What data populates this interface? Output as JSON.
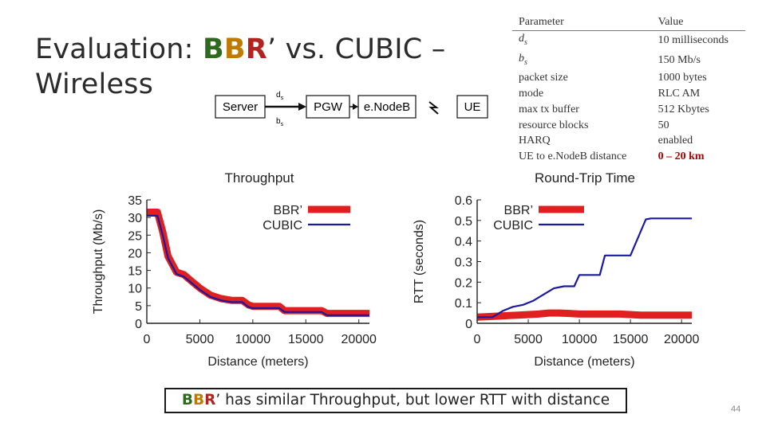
{
  "slide": {
    "title_line1_prefix": "Evaluation: ",
    "title_bbr_b1": "B",
    "title_bbr_b2": "B",
    "title_bbr_r": "R",
    "title_line1_suffix": "’ vs. CUBIC –",
    "title_line2": "Wireless",
    "page_number": "44"
  },
  "topology": {
    "nodes": [
      "Server",
      "PGW",
      "e.NodeB",
      "UE"
    ],
    "link_label_top": "d",
    "link_label_top_sub": "s",
    "link_label_bottom": "b",
    "link_label_bottom_sub": "s",
    "wireless_symbol": "≁"
  },
  "parameters": {
    "header_param": "Parameter",
    "header_value": "Value",
    "rows": [
      {
        "name": "d",
        "sub": "s",
        "italic": true,
        "value": "10 milliseconds"
      },
      {
        "name": "b",
        "sub": "s",
        "italic": true,
        "value": "150 Mb/s"
      },
      {
        "name": "packet size",
        "sub": "",
        "italic": false,
        "value": "1000 bytes"
      },
      {
        "name": "mode",
        "sub": "",
        "italic": false,
        "value": "RLC AM"
      },
      {
        "name": "max tx buffer",
        "sub": "",
        "italic": false,
        "value": "512 Kbytes"
      },
      {
        "name": "resource blocks",
        "sub": "",
        "italic": false,
        "value": "50"
      },
      {
        "name": "HARQ",
        "sub": "",
        "italic": false,
        "value": "enabled"
      },
      {
        "name": "UE to e.NodeB distance",
        "sub": "",
        "italic": false,
        "value": "0 – 20 km"
      }
    ],
    "highlight_color": "#b00000"
  },
  "caption": {
    "bbr_b1": "B",
    "bbr_b2": "B",
    "bbr_r": "R",
    "text": "’ has similar Throughput, but lower RTT with distance"
  },
  "colors": {
    "bbr": "#e02020",
    "cubic": "#1a1aa0",
    "axis": "#222222"
  },
  "chart_data": [
    {
      "type": "line",
      "title": "Throughput",
      "xlabel": "Distance (meters)",
      "ylabel": "Throughput (Mb/s)",
      "xlim": [
        0,
        21000
      ],
      "ylim": [
        0,
        35
      ],
      "xticks": [
        0,
        5000,
        10000,
        15000,
        20000
      ],
      "yticks": [
        0,
        5,
        10,
        15,
        20,
        25,
        30,
        35
      ],
      "legend_position": "top-right",
      "series": [
        {
          "name": "BBR’",
          "style": "thick",
          "x": [
            0,
            1000,
            1500,
            2000,
            2800,
            3500,
            4000,
            5000,
            6000,
            7000,
            8000,
            9000,
            9600,
            10000,
            11000,
            12000,
            12500,
            13000,
            14000,
            15000,
            16000,
            16500,
            17000,
            18000,
            19000,
            20000,
            21000
          ],
          "y": [
            31.5,
            31.5,
            26,
            19,
            14.5,
            13.8,
            12.5,
            10,
            8,
            7,
            6.5,
            6.5,
            5.2,
            4.8,
            4.8,
            4.8,
            4.8,
            3.6,
            3.6,
            3.6,
            3.6,
            3.6,
            2.8,
            2.8,
            2.8,
            2.8,
            2.8
          ]
        },
        {
          "name": "CUBIC",
          "style": "thin",
          "x": [
            0,
            1000,
            1500,
            2000,
            2800,
            3500,
            4000,
            5000,
            6000,
            7000,
            8000,
            9000,
            9600,
            10000,
            11000,
            12000,
            12500,
            13000,
            14000,
            15000,
            16000,
            16500,
            17000,
            18000,
            19000,
            20000,
            21000
          ],
          "y": [
            30.5,
            30.5,
            25,
            18.5,
            14,
            13.2,
            12,
            9.5,
            7.5,
            6.5,
            6,
            6,
            4.6,
            4.3,
            4.3,
            4.3,
            4.3,
            3.2,
            3.2,
            3.2,
            3.2,
            3.2,
            2.3,
            2.3,
            2.3,
            2.3,
            2.3
          ]
        }
      ]
    },
    {
      "type": "line",
      "title": "Round-Trip Time",
      "xlabel": "Distance (meters)",
      "ylabel": "RTT (seconds)",
      "xlim": [
        0,
        21000
      ],
      "ylim": [
        0,
        0.6
      ],
      "xticks": [
        0,
        5000,
        10000,
        15000,
        20000
      ],
      "yticks": [
        0,
        0.1,
        0.2,
        0.3,
        0.4,
        0.5,
        0.6
      ],
      "legend_position": "top-left",
      "series": [
        {
          "name": "BBR’",
          "style": "thick",
          "x": [
            0,
            2000,
            4000,
            6000,
            7000,
            8000,
            9000,
            10000,
            12000,
            14000,
            16000,
            18000,
            21000
          ],
          "y": [
            0.03,
            0.035,
            0.04,
            0.045,
            0.05,
            0.05,
            0.048,
            0.045,
            0.045,
            0.045,
            0.04,
            0.04,
            0.04
          ]
        },
        {
          "name": "CUBIC",
          "style": "thin",
          "x": [
            0,
            1500,
            2500,
            3500,
            4500,
            5500,
            6500,
            7500,
            8500,
            9500,
            10000,
            12000,
            12500,
            14500,
            15000,
            16500,
            17000,
            21000
          ],
          "y": [
            0.03,
            0.03,
            0.06,
            0.08,
            0.09,
            0.11,
            0.14,
            0.17,
            0.18,
            0.18,
            0.235,
            0.235,
            0.33,
            0.33,
            0.33,
            0.505,
            0.51,
            0.51
          ]
        }
      ]
    }
  ]
}
